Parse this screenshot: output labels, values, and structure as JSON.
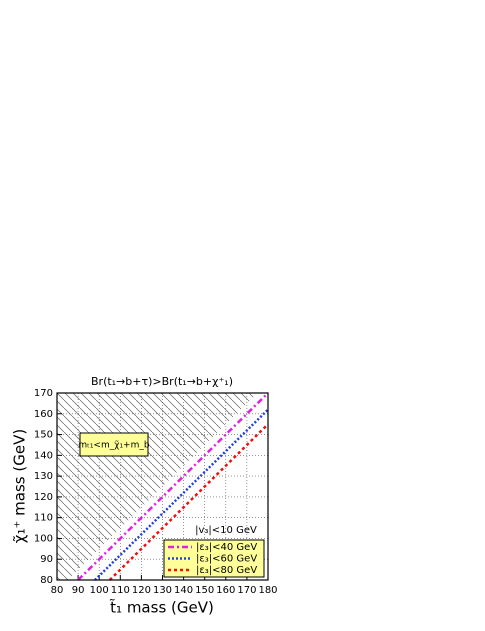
{
  "chart_data": {
    "type": "line",
    "title": "Br(t₁→b+τ)>Br(t₁→b+χ⁺₁)",
    "x_label": "t̃₁ mass (GeV)",
    "y_label": "χ̃₁⁺ mass (GeV)",
    "xlim": [
      80,
      180
    ],
    "ylim": [
      80,
      170
    ],
    "xticks": [
      80,
      90,
      100,
      110,
      120,
      130,
      140,
      150,
      160,
      170,
      180
    ],
    "yticks": [
      80,
      90,
      100,
      110,
      120,
      130,
      140,
      150,
      160,
      170
    ],
    "grid": true,
    "region": {
      "label": "mₜ₁<m_χ̃₁+m_b",
      "x": [
        80,
        85,
        175,
        80
      ],
      "y": [
        80,
        80,
        170,
        170
      ]
    },
    "legend_title": "|v₃|<10 GeV",
    "legend_position": "lower right",
    "series": [
      {
        "name": "|ε₃|<40 GeV",
        "color": "#e020e0",
        "dash": "6,3,2,3",
        "x": [
          90,
          180
        ],
        "values": [
          80,
          170
        ]
      },
      {
        "name": "|ε₃|<60 GeV",
        "color": "#2040e0",
        "dash": "2,2",
        "x": [
          98,
          180
        ],
        "values": [
          80,
          162
        ]
      },
      {
        "name": "|ε₃|<80 GeV",
        "color": "#ee1010",
        "dash": "3,3",
        "x": [
          105,
          180
        ],
        "values": [
          80,
          155
        ]
      }
    ]
  }
}
